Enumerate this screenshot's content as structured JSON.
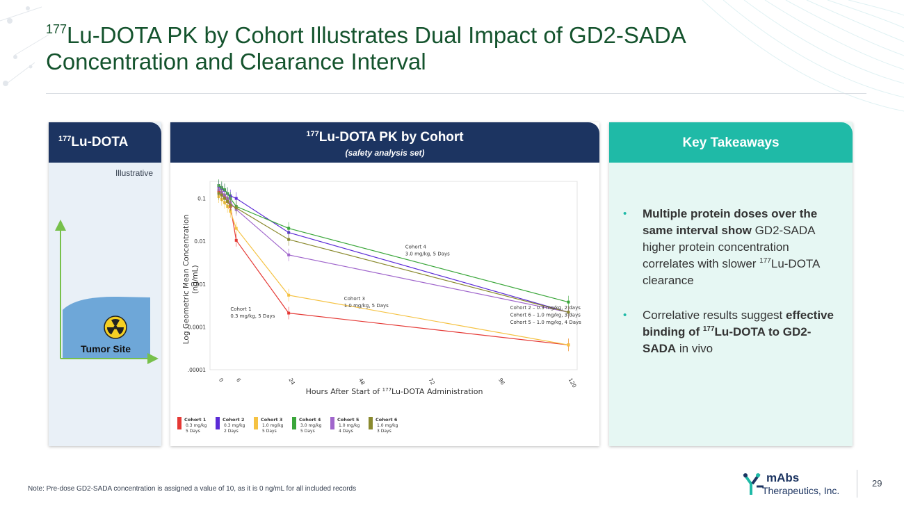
{
  "slide": {
    "title_sup": "177",
    "title_line1": "Lu-DOTA PK by Cohort Illustrates Dual Impact of GD2-SADA",
    "title_line2": "Concentration and Clearance Interval",
    "note": "Note: Pre-dose GD2-SADA concentration is assigned a value of 10, as it is 0 ng/mL for all included records",
    "page_number": "29"
  },
  "left_panel": {
    "header_sup": "177",
    "header": "Lu-DOTA",
    "illustrative": "Illustrative",
    "tumor_label": "Tumor Site",
    "icon": "radiation-icon"
  },
  "center_panel": {
    "header_sup": "177",
    "header": "Lu-DOTA PK by Cohort",
    "subheader": "(safety analysis set)"
  },
  "right_panel": {
    "header": "Key Takeaways",
    "bullet1": {
      "bold1": "Multiple protein doses over the same interval show",
      "text1": " GD2-SADA higher protein concentration correlates with slower ",
      "sup": "177",
      "text2": "Lu-DOTA clearance"
    },
    "bullet2": {
      "text1": "Correlative results suggest ",
      "bold1": "effective binding of ",
      "sup": "177",
      "bold2": "Lu-DOTA to GD2-SADA",
      "text2": " in vivo"
    }
  },
  "logo": {
    "name": "mAbs",
    "subtitle": "Therapeutics, Inc.",
    "icon": "ymabs-logo-icon"
  },
  "chart_data": {
    "type": "line",
    "y_scale": "log",
    "ylabel_line1": "Log Geometric Mean Concentration",
    "ylabel_line2": "(ng/mL)",
    "xlabel_pre": "Hours After Start of ",
    "xlabel_sup": "177",
    "xlabel_post": "Lu-DOTA Administration",
    "x_ticks": [
      0,
      6,
      24,
      48,
      72,
      96,
      120
    ],
    "y_ticks": [
      {
        "value": 0.1,
        "label": "0.1"
      },
      {
        "value": 0.01,
        "label": "0.01"
      },
      {
        "value": 0.001,
        "label": "0.001"
      },
      {
        "value": 0.0001,
        "label": "0.0001"
      },
      {
        "value": 1e-05,
        "label": ".00001"
      }
    ],
    "xlim": [
      -3,
      123
    ],
    "ylim": [
      1e-05,
      0.25
    ],
    "series": [
      {
        "name": "Cohort 1",
        "dose": "0.3 mg/kg",
        "interval": "5 Days",
        "color": "#e53935",
        "x": [
          0,
          1,
          2,
          3,
          4,
          6,
          24,
          120
        ],
        "y": [
          0.15,
          0.13,
          0.11,
          0.085,
          0.065,
          0.0105,
          0.00021,
          3.8e-05
        ]
      },
      {
        "name": "Cohort 2",
        "dose": "0.3 mg/kg",
        "interval": "2 Days",
        "color": "#5b2bd6",
        "x": [
          0,
          1,
          2,
          3,
          4,
          6,
          24,
          120
        ],
        "y": [
          0.19,
          0.17,
          0.155,
          0.13,
          0.115,
          0.1,
          0.016,
          0.00022
        ]
      },
      {
        "name": "Cohort 3",
        "dose": "1.0 mg/kg",
        "interval": "5 Days",
        "color": "#f5c242",
        "x": [
          0,
          1,
          2,
          3,
          4,
          6,
          24,
          120
        ],
        "y": [
          0.11,
          0.095,
          0.08,
          0.065,
          0.05,
          0.02,
          0.00055,
          3.8e-05
        ]
      },
      {
        "name": "Cohort 4",
        "dose": "3.0 mg/kg",
        "interval": "5 Days",
        "color": "#3aa63a",
        "x": [
          0,
          1,
          2,
          3,
          4,
          6,
          24,
          120
        ],
        "y": [
          0.2,
          0.18,
          0.16,
          0.13,
          0.1,
          0.065,
          0.02,
          0.00038
        ]
      },
      {
        "name": "Cohort 5",
        "dose": "1.0 mg/kg",
        "interval": "4 Days",
        "color": "#a066cc",
        "x": [
          0,
          1,
          2,
          3,
          4,
          6,
          24,
          120
        ],
        "y": [
          0.16,
          0.14,
          0.12,
          0.1,
          0.08,
          0.055,
          0.0048,
          0.00022
        ]
      },
      {
        "name": "Cohort 6",
        "dose": "1.0 mg/kg",
        "interval": "3 Days",
        "color": "#8a8a2e",
        "x": [
          0,
          1,
          2,
          3,
          4,
          6,
          24,
          120
        ],
        "y": [
          0.13,
          0.12,
          0.1,
          0.085,
          0.07,
          0.06,
          0.011,
          0.00022
        ]
      }
    ],
    "annotations": [
      {
        "line1": "Cohort 1",
        "line2": "0.3 mg/kg, 5 Days",
        "x": 4,
        "y": 0.00024
      },
      {
        "line1": "Cohort 3",
        "line2": "1.0 mg/kg, 5 Days",
        "x": 43,
        "y": 0.00042
      },
      {
        "line1": "Cohort 4",
        "line2": "3.0 mg/kg, 5 Days",
        "x": 64,
        "y": 0.0068
      },
      {
        "line1": "Cohort 2 – 0.3 mg/kg, 2 days",
        "line2": "",
        "x": 100,
        "y": 0.00026
      },
      {
        "line1": "Cohort 6 – 1.0 mg/kg, 3 days",
        "line2": "",
        "x": 100,
        "y": 0.000175
      },
      {
        "line1": "Cohort 5 – 1.0 mg/kg, 4 Days",
        "line2": "",
        "x": 100,
        "y": 0.000118
      }
    ]
  }
}
